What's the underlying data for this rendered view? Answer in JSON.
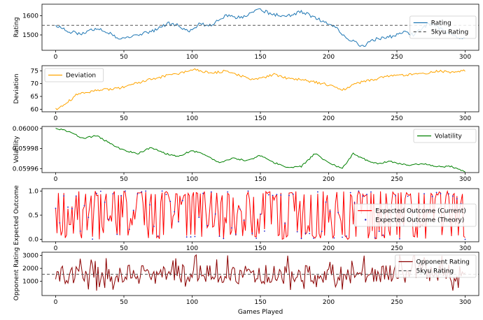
{
  "chart_data": {
    "type": "line",
    "xlabel": "Games Played",
    "x_ticks": [
      "0",
      "50",
      "100",
      "150",
      "200",
      "250",
      "300"
    ],
    "x_range": [
      -10,
      310
    ],
    "n_games": 301,
    "panels": [
      {
        "id": "rating",
        "ylabel": "Rating",
        "ylim": [
          1420,
          1660
        ],
        "y_ticks": [
          {
            "v": 1500,
            "label": "1500"
          },
          {
            "v": 1600,
            "label": "1600"
          }
        ],
        "legend_position": "center-right",
        "series": [
          {
            "name": "Rating",
            "color": "#1f77b4",
            "style": "solid",
            "key": "rating"
          }
        ],
        "hlines": [
          {
            "name": "5kyu Rating",
            "value": 1550,
            "color": "#555555",
            "style": "dashed"
          }
        ],
        "anchors": [
          [
            0,
            1550
          ],
          [
            8,
            1520
          ],
          [
            20,
            1505
          ],
          [
            30,
            1535
          ],
          [
            40,
            1508
          ],
          [
            48,
            1475
          ],
          [
            55,
            1495
          ],
          [
            65,
            1510
          ],
          [
            75,
            1530
          ],
          [
            82,
            1560
          ],
          [
            90,
            1548
          ],
          [
            98,
            1520
          ],
          [
            105,
            1555
          ],
          [
            115,
            1555
          ],
          [
            125,
            1600
          ],
          [
            135,
            1590
          ],
          [
            145,
            1620
          ],
          [
            150,
            1630
          ],
          [
            160,
            1605
          ],
          [
            170,
            1600
          ],
          [
            180,
            1620
          ],
          [
            190,
            1590
          ],
          [
            198,
            1560
          ],
          [
            205,
            1540
          ],
          [
            212,
            1490
          ],
          [
            218,
            1470
          ],
          [
            225,
            1440
          ],
          [
            235,
            1480
          ],
          [
            245,
            1490
          ],
          [
            255,
            1520
          ],
          [
            262,
            1500
          ],
          [
            270,
            1545
          ],
          [
            275,
            1560
          ],
          [
            283,
            1525
          ],
          [
            290,
            1500
          ],
          [
            300,
            1480
          ]
        ]
      },
      {
        "id": "deviation",
        "ylabel": "Deviation",
        "ylim": [
          59,
          77
        ],
        "y_ticks": [
          {
            "v": 60,
            "label": "60"
          },
          {
            "v": 65,
            "label": "65"
          },
          {
            "v": 70,
            "label": "70"
          },
          {
            "v": 75,
            "label": "75"
          }
        ],
        "legend_position": "top-left",
        "series": [
          {
            "name": "Deviation",
            "color": "#ffa500",
            "style": "solid",
            "key": "deviation"
          }
        ],
        "hlines": [],
        "anchors": [
          [
            0,
            60
          ],
          [
            5,
            61
          ],
          [
            15,
            65.5
          ],
          [
            30,
            67.5
          ],
          [
            45,
            68
          ],
          [
            55,
            69.5
          ],
          [
            65,
            71
          ],
          [
            80,
            73
          ],
          [
            95,
            74.5
          ],
          [
            100,
            75.5
          ],
          [
            115,
            74
          ],
          [
            125,
            75
          ],
          [
            135,
            73
          ],
          [
            145,
            71.5
          ],
          [
            160,
            73.5
          ],
          [
            170,
            72
          ],
          [
            180,
            71.5
          ],
          [
            190,
            70.5
          ],
          [
            200,
            69.5
          ],
          [
            210,
            67.5
          ],
          [
            220,
            70
          ],
          [
            232,
            71.5
          ],
          [
            245,
            73
          ],
          [
            260,
            73.5
          ],
          [
            270,
            74
          ],
          [
            280,
            75
          ],
          [
            290,
            74.5
          ],
          [
            300,
            75
          ]
        ]
      },
      {
        "id": "volatility",
        "ylabel": "Volatility",
        "ylim": [
          0.059956,
          0.060002
        ],
        "y_ticks": [
          {
            "v": 0.05996,
            "label": "0.05996"
          },
          {
            "v": 0.05998,
            "label": "0.05998"
          },
          {
            "v": 0.06,
            "label": "0.06000"
          }
        ],
        "legend_position": "top-right",
        "series": [
          {
            "name": "Volatility",
            "color": "#008000",
            "style": "solid",
            "key": "volatility"
          }
        ],
        "hlines": [],
        "anchors": [
          [
            0,
            0.06
          ],
          [
            10,
            0.059997
          ],
          [
            20,
            0.05999
          ],
          [
            30,
            0.059993
          ],
          [
            40,
            0.059985
          ],
          [
            50,
            0.059978
          ],
          [
            60,
            0.059975
          ],
          [
            70,
            0.059981
          ],
          [
            80,
            0.059975
          ],
          [
            90,
            0.059972
          ],
          [
            100,
            0.059978
          ],
          [
            110,
            0.059973
          ],
          [
            120,
            0.059966
          ],
          [
            130,
            0.05997
          ],
          [
            140,
            0.059968
          ],
          [
            150,
            0.059973
          ],
          [
            160,
            0.059966
          ],
          [
            170,
            0.059961
          ],
          [
            180,
            0.059962
          ],
          [
            190,
            0.059975
          ],
          [
            200,
            0.059966
          ],
          [
            210,
            0.05996
          ],
          [
            218,
            0.059975
          ],
          [
            225,
            0.05997
          ],
          [
            235,
            0.059965
          ],
          [
            245,
            0.059967
          ],
          [
            258,
            0.059963
          ],
          [
            270,
            0.059965
          ],
          [
            280,
            0.059962
          ],
          [
            290,
            0.059962
          ],
          [
            300,
            0.059957
          ]
        ]
      },
      {
        "id": "expected",
        "ylabel": "Expected Outcome",
        "ylim": [
          -0.05,
          1.05
        ],
        "y_ticks": [
          {
            "v": 0,
            "label": "0.0"
          },
          {
            "v": 0.5,
            "label": "0.5"
          },
          {
            "v": 1.0,
            "label": "1.0"
          }
        ],
        "legend_position": "center-right",
        "series": [
          {
            "name": "Expected Outcome (Current)",
            "color": "#ff0000",
            "style": "solid",
            "key": "expected"
          },
          {
            "name": "Expected Outcome (Theory)",
            "color": "#2222cc",
            "style": "dots",
            "key": "expected_theory"
          }
        ],
        "hlines": []
      },
      {
        "id": "opponent",
        "ylabel": "Opponent Rating",
        "ylim": [
          -100,
          3250
        ],
        "y_ticks": [
          {
            "v": 1000,
            "label": "1000"
          },
          {
            "v": 2000,
            "label": "2000"
          },
          {
            "v": 3000,
            "label": "3000"
          }
        ],
        "legend_position": "top-right",
        "series": [
          {
            "name": "Opponent Rating",
            "color": "#8b0000",
            "style": "solid",
            "key": "opponent"
          }
        ],
        "hlines": [
          {
            "name": "5kyu Rating",
            "value": 1550,
            "color": "#555555",
            "style": "dashed"
          }
        ]
      }
    ]
  }
}
